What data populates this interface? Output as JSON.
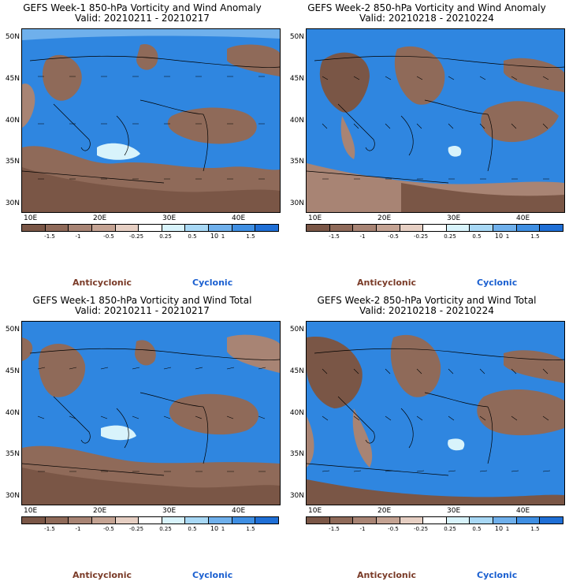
{
  "panels": [
    {
      "title": "GEFS Week-1 850-hPa Vorticity and Wind Anomaly",
      "valid": "Valid: 20210211 - 20210217"
    },
    {
      "title": "GEFS Week-2 850-hPa Vorticity and Wind Anomaly",
      "valid": "Valid: 20210218 - 20210224"
    },
    {
      "title": "GEFS Week-1 850-hPa Vorticity and Wind Total",
      "valid": "Valid: 20210211 - 20210217"
    },
    {
      "title": "GEFS Week-2 850-hPa Vorticity and Wind Total",
      "valid": "Valid: 20210218 - 20210224"
    }
  ],
  "lat_labels": [
    "50N",
    "45N",
    "40N",
    "35N",
    "30N"
  ],
  "lon_labels": [
    "10E",
    "20E",
    "30E",
    "40E"
  ],
  "colorbar": {
    "ticks": [
      "-1.5",
      "-1",
      "-0.5",
      "-0.25",
      "0.25",
      "0.5",
      "1",
      "1.5"
    ],
    "unit_label": "10",
    "colors": [
      "#7a5646",
      "#8f6a59",
      "#a88474",
      "#c4a393",
      "#e6cfc3",
      "#ffffff",
      "#d8f3fb",
      "#a8d8f5",
      "#6fb0ec",
      "#3f8fe3",
      "#1f6fd6"
    ]
  },
  "legend": {
    "anticyclonic": "Anticyclonic",
    "cyclonic": "Cyclonic",
    "anticyclonic_color": "#7a3b28",
    "cyclonic_color": "#1a5fd0"
  }
}
